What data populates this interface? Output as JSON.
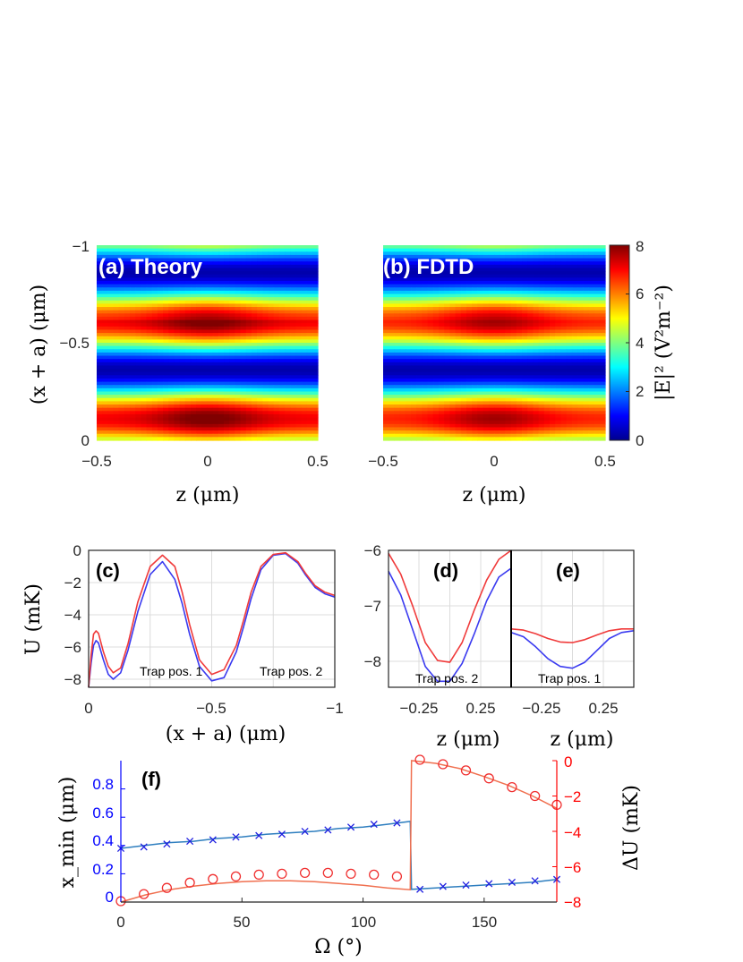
{
  "chart_data": [
    {
      "id": "a",
      "type": "heatmap",
      "panel_label": "(a) Theory",
      "xlabel": "z (μm)",
      "ylabel": "(x + a) (μm)",
      "xlim": [
        -0.5,
        0.5
      ],
      "ylim": [
        0,
        -1
      ],
      "xticks": [
        "−0.5",
        "0",
        "0.5"
      ],
      "yticks": [
        "−1",
        "−0.5",
        "0"
      ],
      "peaks_x": [
        -0.14,
        -0.64
      ],
      "peak_values": [
        7.4,
        7.8
      ],
      "colormap": "jet"
    },
    {
      "id": "b",
      "type": "heatmap",
      "panel_label": "(b) FDTD",
      "xlabel": "z (μm)",
      "xlim": [
        -0.5,
        0.5
      ],
      "ylim": [
        0,
        -1
      ],
      "xticks": [
        "−0.5",
        "0",
        "0.5"
      ],
      "peaks_x": [
        -0.14,
        -0.64
      ],
      "peak_values": [
        7.2,
        7.4
      ],
      "colormap": "jet",
      "colorbar": {
        "label": "|E|² (V²m⁻²)",
        "range": [
          0,
          8
        ],
        "ticks": [
          "0",
          "2",
          "4",
          "6",
          "8"
        ]
      }
    },
    {
      "id": "c",
      "type": "line",
      "panel_label": "(c)",
      "xlabel": "(x + a) (μm)",
      "ylabel": "U (mK)",
      "xlim": [
        0,
        -1
      ],
      "ylim": [
        -8.5,
        0
      ],
      "xticks": [
        "0",
        "−0.5",
        "−1"
      ],
      "yticks": [
        "0",
        "−2",
        "−4",
        "−6",
        "−8"
      ],
      "annotations": [
        "Trap pos. 1",
        "Trap pos. 2"
      ],
      "series": [
        {
          "name": "blue",
          "color": "#3a3af0",
          "x": [
            0,
            -0.01,
            -0.02,
            -0.03,
            -0.04,
            -0.06,
            -0.08,
            -0.1,
            -0.13,
            -0.16,
            -0.2,
            -0.25,
            -0.3,
            -0.35,
            -0.38,
            -0.41,
            -0.45,
            -0.5,
            -0.55,
            -0.6,
            -0.63,
            -0.66,
            -0.7,
            -0.75,
            -0.8,
            -0.85,
            -0.88,
            -0.92,
            -0.96,
            -1.0
          ],
          "values": [
            -8.5,
            -7.0,
            -5.9,
            -5.6,
            -5.75,
            -6.8,
            -7.7,
            -8.0,
            -7.6,
            -6.2,
            -3.8,
            -1.5,
            -0.7,
            -1.8,
            -3.3,
            -5.2,
            -7.2,
            -8.1,
            -7.9,
            -6.3,
            -4.7,
            -3.0,
            -1.2,
            -0.3,
            -0.2,
            -0.8,
            -1.5,
            -2.3,
            -2.7,
            -2.9
          ]
        },
        {
          "name": "red",
          "color": "#f03a3a",
          "x": [
            0,
            -0.01,
            -0.02,
            -0.03,
            -0.04,
            -0.06,
            -0.08,
            -0.1,
            -0.13,
            -0.16,
            -0.2,
            -0.25,
            -0.3,
            -0.35,
            -0.38,
            -0.41,
            -0.45,
            -0.5,
            -0.55,
            -0.6,
            -0.63,
            -0.66,
            -0.7,
            -0.75,
            -0.8,
            -0.85,
            -0.88,
            -0.92,
            -0.96,
            -1.0
          ],
          "values": [
            -8.5,
            -6.5,
            -5.2,
            -5.0,
            -5.15,
            -6.3,
            -7.2,
            -7.6,
            -7.3,
            -5.8,
            -3.2,
            -1.0,
            -0.3,
            -1.0,
            -2.6,
            -4.6,
            -6.8,
            -7.7,
            -7.4,
            -5.9,
            -4.3,
            -2.6,
            -1.0,
            -0.25,
            -0.15,
            -0.7,
            -1.4,
            -2.2,
            -2.6,
            -2.8
          ]
        }
      ]
    },
    {
      "id": "d",
      "type": "line",
      "panel_label": "(d)",
      "xlabel": "z (μm)",
      "xlim": [
        -0.5,
        0.5
      ],
      "ylim": [
        -8.3,
        -6
      ],
      "xticks": [
        "−0.25",
        "0.25"
      ],
      "yticks": [
        "−6",
        "−7",
        "−8"
      ],
      "annotation": "Trap pos. 2",
      "series": [
        {
          "name": "blue",
          "color": "#3a3af0",
          "x": [
            -0.5,
            -0.4,
            -0.3,
            -0.2,
            -0.1,
            0,
            0.1,
            0.2,
            0.3,
            0.4,
            0.5
          ],
          "values": [
            -6.35,
            -6.75,
            -7.35,
            -7.95,
            -8.2,
            -8.2,
            -7.9,
            -7.4,
            -6.85,
            -6.45,
            -6.3
          ]
        },
        {
          "name": "red",
          "color": "#f03a3a",
          "x": [
            -0.5,
            -0.4,
            -0.3,
            -0.2,
            -0.1,
            0,
            0.1,
            0.2,
            0.3,
            0.4,
            0.5
          ],
          "values": [
            -6.05,
            -6.4,
            -6.95,
            -7.55,
            -7.85,
            -7.88,
            -7.55,
            -7.0,
            -6.5,
            -6.15,
            -6.0
          ]
        }
      ]
    },
    {
      "id": "e",
      "type": "line",
      "panel_label": "(e)",
      "xlabel": "z (μm)",
      "xlim": [
        -0.5,
        0.5
      ],
      "ylim": [
        -8.3,
        -6
      ],
      "xticks": [
        "−0.25",
        "0.25"
      ],
      "annotation": "Trap pos. 1",
      "series": [
        {
          "name": "blue",
          "color": "#3a3af0",
          "x": [
            -0.5,
            -0.4,
            -0.3,
            -0.2,
            -0.1,
            0,
            0.1,
            0.2,
            0.3,
            0.4,
            0.5
          ],
          "values": [
            -7.38,
            -7.45,
            -7.62,
            -7.82,
            -7.95,
            -7.98,
            -7.88,
            -7.68,
            -7.48,
            -7.38,
            -7.35
          ]
        },
        {
          "name": "red",
          "color": "#f03a3a",
          "x": [
            -0.5,
            -0.4,
            -0.3,
            -0.2,
            -0.1,
            0,
            0.1,
            0.2,
            0.3,
            0.4,
            0.5
          ],
          "values": [
            -7.32,
            -7.34,
            -7.4,
            -7.48,
            -7.54,
            -7.55,
            -7.5,
            -7.42,
            -7.35,
            -7.32,
            -7.32
          ]
        }
      ]
    },
    {
      "id": "f",
      "type": "line",
      "panel_label": "(f)",
      "xlabel": "Ω (°)",
      "ylabel_left": "x_min (μm)",
      "ylabel_right": "ΔU (mK)",
      "xlim": [
        0,
        180
      ],
      "ylim_left": [
        0,
        1.0
      ],
      "ylim_right": [
        -8,
        0
      ],
      "xticks": [
        "0",
        "50",
        "100",
        "150"
      ],
      "yticks_left": [
        "0",
        "0.2",
        "0.4",
        "0.6",
        "0.8"
      ],
      "yticks_right": [
        "0",
        "−2",
        "−4",
        "−6",
        "−8"
      ],
      "series": [
        {
          "name": "x_min theory",
          "axis": "left",
          "style": "line",
          "color": "#2e7ebf",
          "x": [
            0,
            10,
            20,
            30,
            40,
            50,
            60,
            70,
            80,
            90,
            100,
            110,
            119.5,
            120,
            130,
            140,
            150,
            160,
            170,
            180
          ],
          "values": [
            0.38,
            0.4,
            0.42,
            0.43,
            0.45,
            0.46,
            0.48,
            0.49,
            0.5,
            0.52,
            0.53,
            0.55,
            0.57,
            0.09,
            0.1,
            0.11,
            0.12,
            0.13,
            0.14,
            0.16
          ]
        },
        {
          "name": "x_min FDTD",
          "axis": "left",
          "style": "x-marker",
          "color": "#2020e0",
          "x": [
            0,
            9.5,
            19,
            28.5,
            38,
            47.5,
            57,
            66.5,
            76,
            85.5,
            95,
            104.5,
            114,
            123.5,
            133,
            142.5,
            152,
            161.5,
            171,
            180
          ],
          "values": [
            0.38,
            0.39,
            0.41,
            0.43,
            0.44,
            0.46,
            0.47,
            0.48,
            0.5,
            0.51,
            0.53,
            0.55,
            0.56,
            0.09,
            0.11,
            0.12,
            0.13,
            0.14,
            0.15,
            0.16
          ]
        },
        {
          "name": "ΔU theory",
          "axis": "right",
          "style": "line",
          "color": "#f07050",
          "x": [
            0,
            10,
            20,
            30,
            40,
            50,
            60,
            70,
            80,
            90,
            100,
            110,
            119.5,
            120,
            130,
            140,
            150,
            160,
            170,
            180
          ],
          "values": [
            -8.0,
            -7.6,
            -7.3,
            -7.1,
            -6.95,
            -6.85,
            -6.8,
            -6.8,
            -6.85,
            -6.95,
            -7.05,
            -7.2,
            -7.3,
            0.0,
            -0.15,
            -0.45,
            -0.9,
            -1.4,
            -2.0,
            -2.7
          ]
        },
        {
          "name": "ΔU FDTD",
          "axis": "right",
          "style": "o-marker",
          "color": "#f03030",
          "x": [
            0,
            9.5,
            19,
            28.5,
            38,
            47.5,
            57,
            66.5,
            76,
            85.5,
            95,
            104.5,
            114,
            123.5,
            133,
            142.5,
            152,
            161.5,
            171,
            180
          ],
          "values": [
            -7.95,
            -7.55,
            -7.2,
            -6.9,
            -6.7,
            -6.55,
            -6.45,
            -6.4,
            -6.35,
            -6.35,
            -6.4,
            -6.45,
            -6.55,
            0.05,
            -0.2,
            -0.55,
            -1.0,
            -1.5,
            -2.0,
            -2.5
          ]
        }
      ]
    }
  ]
}
